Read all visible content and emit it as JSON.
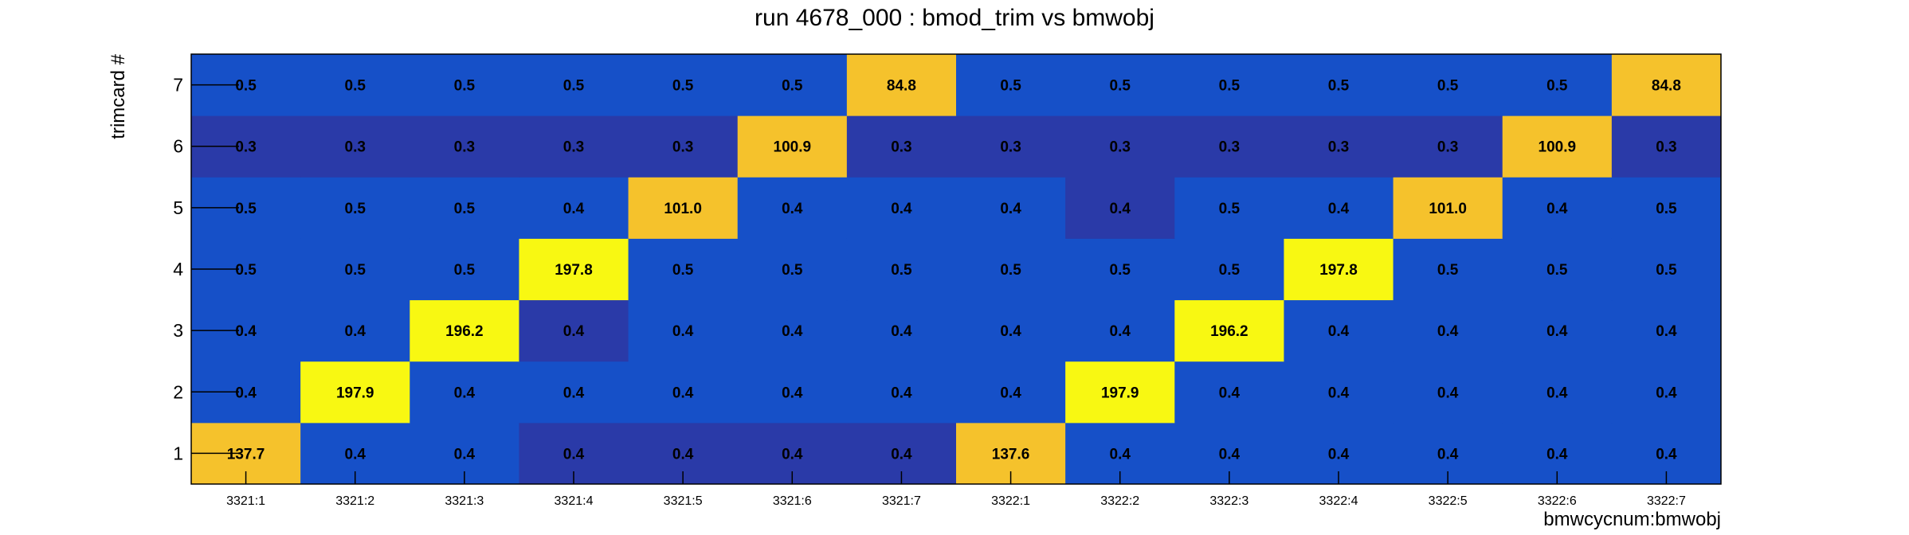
{
  "chart_data": {
    "type": "heatmap",
    "title": "run 4678_000 : bmod_trim vs bmwobj",
    "xlabel": "bmwcycnum:bmwobj",
    "ylabel": "trimcard #",
    "x_categories": [
      "3321:1",
      "3321:2",
      "3321:3",
      "3321:4",
      "3321:5",
      "3321:6",
      "3321:7",
      "3322:1",
      "3322:2",
      "3322:3",
      "3322:4",
      "3322:5",
      "3322:6",
      "3322:7"
    ],
    "y_categories": [
      "1",
      "2",
      "3",
      "4",
      "5",
      "6",
      "7"
    ],
    "values": [
      [
        137.7,
        0.4,
        0.4,
        0.4,
        0.4,
        0.4,
        0.4,
        137.6,
        0.4,
        0.4,
        0.4,
        0.4,
        0.4,
        0.4
      ],
      [
        0.4,
        197.9,
        0.4,
        0.4,
        0.4,
        0.4,
        0.4,
        0.4,
        197.9,
        0.4,
        0.4,
        0.4,
        0.4,
        0.4
      ],
      [
        0.4,
        0.4,
        196.2,
        0.4,
        0.4,
        0.4,
        0.4,
        0.4,
        0.4,
        196.2,
        0.4,
        0.4,
        0.4,
        0.4
      ],
      [
        0.5,
        0.5,
        0.5,
        197.8,
        0.5,
        0.5,
        0.5,
        0.5,
        0.5,
        0.5,
        197.8,
        0.5,
        0.5,
        0.5
      ],
      [
        0.5,
        0.5,
        0.5,
        0.4,
        101.0,
        0.4,
        0.4,
        0.4,
        0.4,
        0.5,
        0.4,
        101.0,
        0.4,
        0.5
      ],
      [
        0.3,
        0.3,
        0.3,
        0.3,
        0.3,
        100.9,
        0.3,
        0.3,
        0.3,
        0.3,
        0.3,
        0.3,
        100.9,
        0.3
      ],
      [
        0.5,
        0.5,
        0.5,
        0.5,
        0.5,
        0.5,
        84.8,
        0.5,
        0.5,
        0.5,
        0.5,
        0.5,
        0.5,
        84.8
      ]
    ],
    "colors": {
      "low_dark": "#2a3aa8",
      "low": "#1650c8",
      "mid": "#f5c22c",
      "high": "#f8f812"
    }
  }
}
